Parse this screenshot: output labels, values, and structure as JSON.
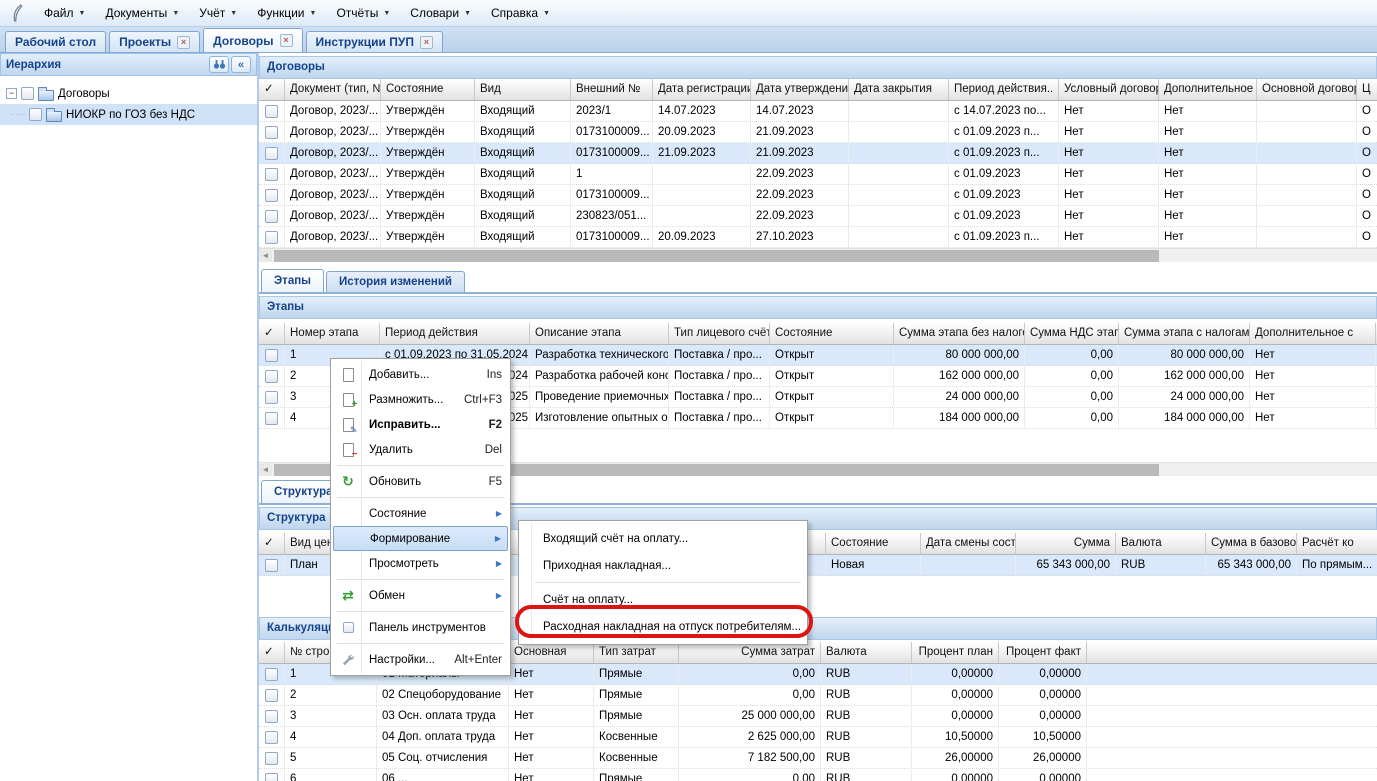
{
  "menubar": {
    "items": [
      "Файл",
      "Документы",
      "Учёт",
      "Функции",
      "Отчёты",
      "Словари",
      "Справка"
    ]
  },
  "tabs": [
    {
      "label": "Рабочий стол",
      "closable": false,
      "active": false
    },
    {
      "label": "Проекты",
      "closable": true,
      "active": false
    },
    {
      "label": "Договоры",
      "closable": true,
      "active": true
    },
    {
      "label": "Инструкции ПУП",
      "closable": true,
      "active": false
    }
  ],
  "sidebar": {
    "title": "Иерархия",
    "tree": [
      {
        "label": "Договоры"
      },
      {
        "label": "НИОКР по ГОЗ без НДС"
      }
    ]
  },
  "contracts": {
    "title": "Договоры",
    "columns": [
      "✓",
      "Документ (тип, №",
      "Состояние",
      "Вид",
      "Внешний №",
      "Дата регистрации.",
      "Дата утверждения",
      "Дата закрытия",
      "Период действия..",
      "Условный договор",
      "Дополнительное с",
      "Основной договор",
      "Ц"
    ],
    "rows": [
      [
        "Договор, 2023/...",
        "Утверждён",
        "Входящий",
        "2023/1",
        "14.07.2023",
        "14.07.2023",
        "",
        "с 14.07.2023 по...",
        "Нет",
        "Нет",
        "",
        "О"
      ],
      [
        "Договор, 2023/...",
        "Утверждён",
        "Входящий",
        "0173100009...",
        "20.09.2023",
        "21.09.2023",
        "",
        "с 01.09.2023 п...",
        "Нет",
        "Нет",
        "",
        "О"
      ],
      [
        "Договор, 2023/...",
        "Утверждён",
        "Входящий",
        "0173100009...",
        "21.09.2023",
        "21.09.2023",
        "",
        "с 01.09.2023 п...",
        "Нет",
        "Нет",
        "",
        "О"
      ],
      [
        "Договор, 2023/...",
        "Утверждён",
        "Входящий",
        "1",
        "",
        "22.09.2023",
        "",
        "с 01.09.2023",
        "Нет",
        "Нет",
        "",
        "О"
      ],
      [
        "Договор, 2023/...",
        "Утверждён",
        "Входящий",
        "0173100009...",
        "",
        "22.09.2023",
        "",
        "с 01.09.2023",
        "Нет",
        "Нет",
        "",
        "О"
      ],
      [
        "Договор, 2023/...",
        "Утверждён",
        "Входящий",
        "230823/051...",
        "",
        "22.09.2023",
        "",
        "с 01.09.2023",
        "Нет",
        "Нет",
        "",
        "О"
      ],
      [
        "Договор, 2023/...",
        "Утверждён",
        "Входящий",
        "0173100009...",
        "20.09.2023",
        "27.10.2023",
        "",
        "с 01.09.2023 п...",
        "Нет",
        "Нет",
        "",
        "О"
      ]
    ],
    "selected": 2
  },
  "stage_tabs": [
    {
      "label": "Этапы",
      "active": true
    },
    {
      "label": "История изменений",
      "active": false
    }
  ],
  "stages": {
    "title": "Этапы",
    "columns": [
      "✓",
      "Номер этапа",
      "Период действия",
      "Описание этапа",
      "Тип лицевого счёт",
      "Состояние",
      "Сумма этапа без налогов",
      "Сумма НДС этапа",
      "Сумма этапа с налогами",
      "Дополнительное с"
    ],
    "rows": [
      [
        "1",
        "с 01.09.2023 по 31.05.2024",
        "Разработка технического...",
        "Поставка / про...",
        "Открыт",
        "80 000 000,00",
        "0,00",
        "80 000 000,00",
        "Нет"
      ],
      [
        "2",
        "с 01.09.2023 по 31.05.2024",
        "Разработка рабочей конс...",
        "Поставка / про...",
        "Открыт",
        "162 000 000,00",
        "0,00",
        "162 000 000,00",
        "Нет"
      ],
      [
        "3",
        "с 01.06.2024 по 31.05.2025",
        "Проведение приемочных...",
        "Поставка / про...",
        "Открыт",
        "24 000 000,00",
        "0,00",
        "24 000 000,00",
        "Нет"
      ],
      [
        "4",
        "с 01.06.2024 по 31.05.2025",
        "Изготовление опытных о...",
        "Поставка / про...",
        "Открыт",
        "184 000 000,00",
        "0,00",
        "184 000 000,00",
        "Нет"
      ]
    ],
    "selected": 0
  },
  "structure_tabs": [
    {
      "label": "Структура",
      "active": true
    }
  ],
  "structure": {
    "title": "Структура",
    "columns": [
      "✓",
      "Вид цен",
      "",
      "Состояние",
      "Дата смены состоя",
      "Сумма",
      "Валюта",
      "Сумма в базовой в",
      "Расчёт ко"
    ],
    "rows": [
      [
        "План",
        "",
        "Новая",
        "",
        "65 343 000,00",
        "RUB",
        "65 343 000,00",
        "По прямым..."
      ]
    ],
    "selected": 0
  },
  "calculation": {
    "title": "Калькуляция",
    "columns": [
      "✓",
      "№ строки",
      "",
      "Основная",
      "Тип затрат",
      "Сумма затрат",
      "Валюта",
      "Процент план",
      "Процент факт"
    ],
    "rows": [
      [
        "1",
        "01 Материалы",
        "Нет",
        "Прямые",
        "0,00",
        "RUB",
        "0,00000",
        "0,00000"
      ],
      [
        "2",
        "02 Спецоборудование",
        "Нет",
        "Прямые",
        "0,00",
        "RUB",
        "0,00000",
        "0,00000"
      ],
      [
        "3",
        "03 Осн. оплата труда",
        "Нет",
        "Прямые",
        "25 000 000,00",
        "RUB",
        "0,00000",
        "0,00000"
      ],
      [
        "4",
        "04 Доп. оплата труда",
        "Нет",
        "Косвенные",
        "2 625 000,00",
        "RUB",
        "10,50000",
        "10,50000"
      ],
      [
        "5",
        "05 Соц. отчисления",
        "Нет",
        "Косвенные",
        "7 182 500,00",
        "RUB",
        "26,00000",
        "26,00000"
      ],
      [
        "6",
        "06 ...",
        "Нет",
        "Прямые",
        "0,00",
        "RUB",
        "0,00000",
        "0,00000"
      ]
    ],
    "selected": 0
  },
  "context_menu": {
    "items": [
      {
        "label": "Добавить...",
        "shortcut": "Ins",
        "icon": "doc-new"
      },
      {
        "label": "Размножить...",
        "shortcut": "Ctrl+F3",
        "icon": "doc-copy"
      },
      {
        "label": "Исправить...",
        "shortcut": "F2",
        "icon": "doc-edit",
        "bold": true
      },
      {
        "label": "Удалить",
        "shortcut": "Del",
        "icon": "doc-delete",
        "sep_after": true
      },
      {
        "label": "Обновить",
        "shortcut": "F5",
        "icon": "refresh",
        "sep_after": true
      },
      {
        "label": "Состояние",
        "arrow": true
      },
      {
        "label": "Формирование",
        "arrow": true,
        "highlighted": true
      },
      {
        "label": "Просмотреть",
        "arrow": true,
        "sep_after": true
      },
      {
        "label": "Обмен",
        "arrow": true,
        "icon": "exchange",
        "sep_after": true
      },
      {
        "label": "Панель инструментов",
        "icon": "checkbox",
        "sep_after": true
      },
      {
        "label": "Настройки...",
        "shortcut": "Alt+Enter",
        "icon": "wrench"
      }
    ]
  },
  "submenu": {
    "items": [
      {
        "label": "Входящий счёт на оплату..."
      },
      {
        "label": "Приходная накладная...",
        "sep_after": true
      },
      {
        "label": "Счёт на оплату..."
      },
      {
        "label": "Расходная накладная на отпуск потребителям...",
        "circled": true
      }
    ]
  }
}
